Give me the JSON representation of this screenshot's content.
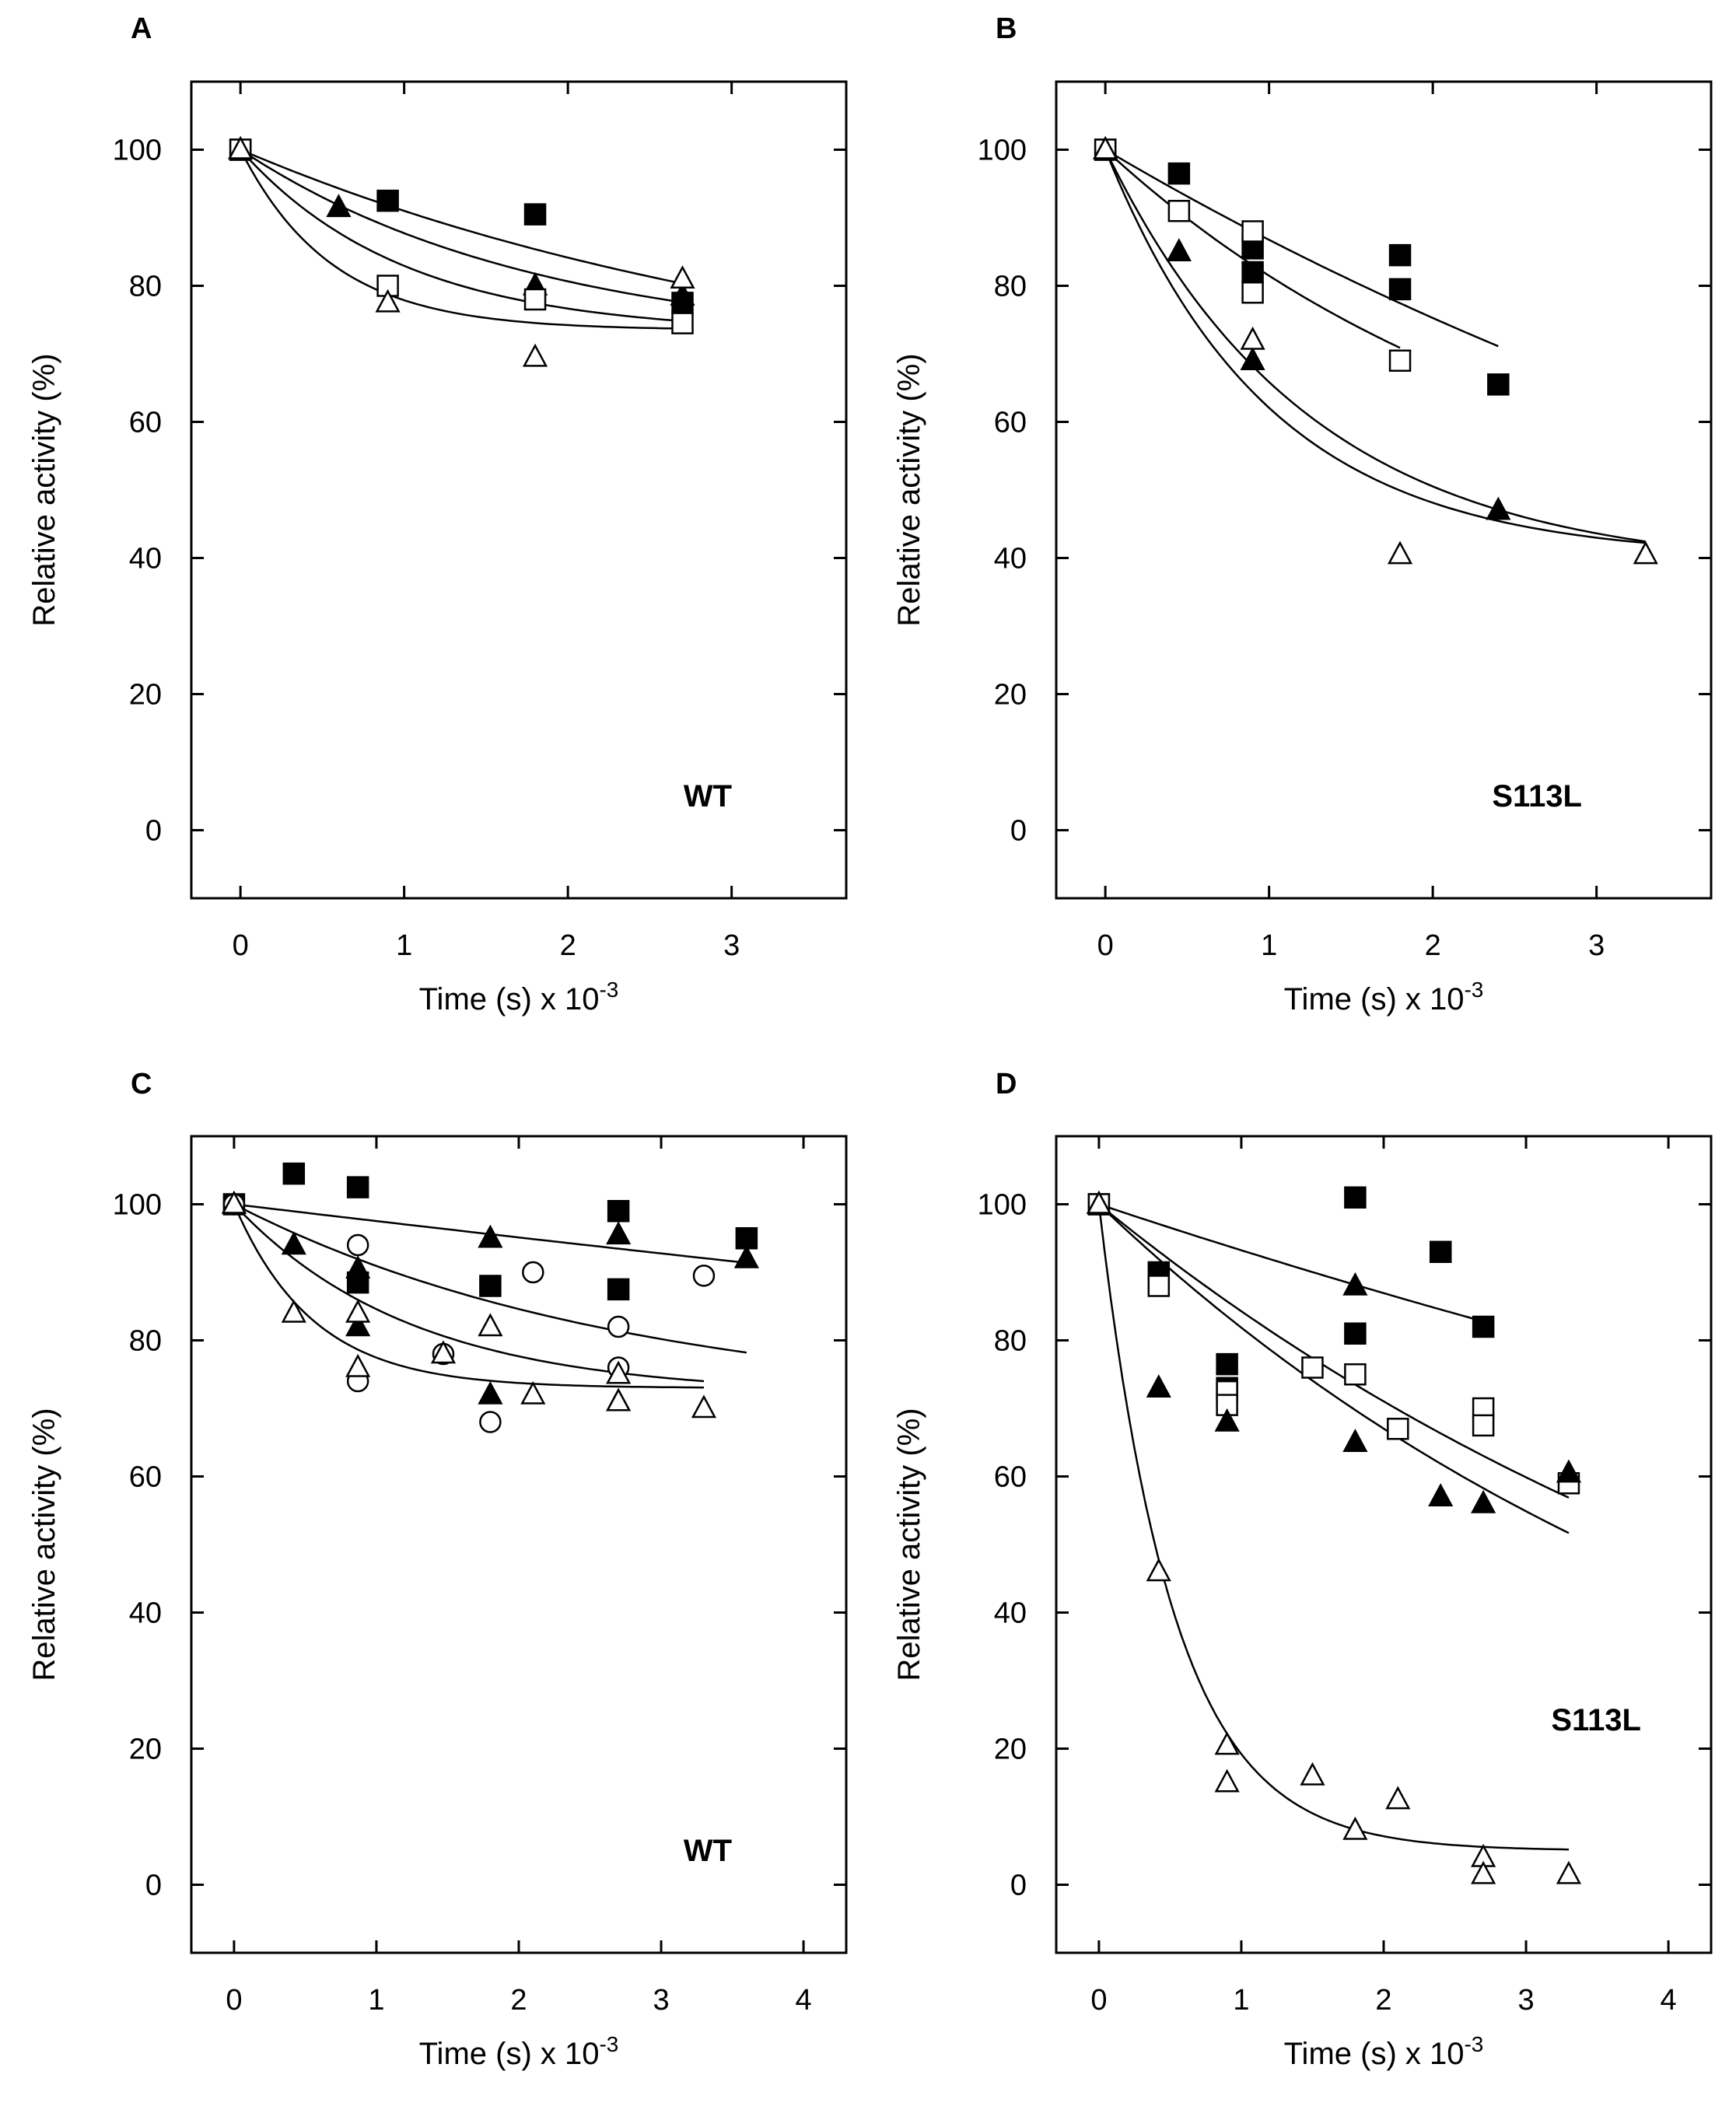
{
  "figure": {
    "panels": [
      "A",
      "B",
      "C",
      "D"
    ]
  },
  "chart_data": [
    {
      "panel": "A",
      "type": "scatter",
      "sample_label": "WT",
      "xlabel_main": "Time (s) x 10",
      "xlabel_exp": "-3",
      "ylabel": "Relative activity (%)",
      "xlim": [
        -0.3,
        3.7
      ],
      "ylim": [
        -10,
        110
      ],
      "xticks": [
        0,
        1,
        2,
        3
      ],
      "yticks": [
        0,
        20,
        40,
        60,
        80,
        100
      ],
      "series": [
        {
          "name": "filled-square",
          "marker": "square",
          "filled": true,
          "points": [
            [
              0,
              100
            ],
            [
              0.9,
              92.5
            ],
            [
              1.8,
              90.5
            ],
            [
              2.7,
              77.5
            ]
          ],
          "fit": {
            "a": 62,
            "k": 0.27,
            "xmax": 2.7
          }
        },
        {
          "name": "filled-triangle",
          "marker": "triangle",
          "filled": true,
          "points": [
            [
              0,
              100
            ],
            [
              0.6,
              91.5
            ],
            [
              1.8,
              80
            ],
            [
              2.7,
              78.5
            ]
          ],
          "fit": {
            "a": 71,
            "k": 0.55,
            "xmax": 2.7
          }
        },
        {
          "name": "open-square",
          "marker": "square",
          "filled": false,
          "points": [
            [
              0,
              100
            ],
            [
              0.9,
              80
            ],
            [
              1.8,
              78
            ],
            [
              2.7,
              74.5
            ]
          ],
          "fit": {
            "a": 73,
            "k": 1.0,
            "xmax": 2.7
          }
        },
        {
          "name": "open-triangle",
          "marker": "triangle",
          "filled": false,
          "points": [
            [
              0,
              100
            ],
            [
              0.9,
              77.5
            ],
            [
              1.8,
              69.5
            ],
            [
              2.7,
              81
            ]
          ],
          "fit": {
            "a": 73.5,
            "k": 1.8,
            "xmax": 2.7
          }
        }
      ]
    },
    {
      "panel": "B",
      "type": "scatter",
      "sample_label": "S113L",
      "xlabel_main": "Time (s) x 10",
      "xlabel_exp": "-3",
      "ylabel": "Relative activity (%)",
      "xlim": [
        -0.3,
        3.7
      ],
      "ylim": [
        -10,
        110
      ],
      "xticks": [
        0,
        1,
        2,
        3
      ],
      "yticks": [
        0,
        20,
        40,
        60,
        80,
        100
      ],
      "series": [
        {
          "name": "filled-square",
          "marker": "square",
          "filled": true,
          "points": [
            [
              0,
              100
            ],
            [
              0.45,
              96.5
            ],
            [
              0.9,
              85.5
            ],
            [
              0.9,
              82
            ],
            [
              1.8,
              84.5
            ],
            [
              1.8,
              79.5
            ],
            [
              2.4,
              65.5
            ]
          ],
          "fit": {
            "a": 0,
            "k": 0.142,
            "xmax": 2.4
          }
        },
        {
          "name": "open-square",
          "marker": "square",
          "filled": false,
          "points": [
            [
              0,
              100
            ],
            [
              0.45,
              91
            ],
            [
              0.9,
              88
            ],
            [
              0.9,
              79
            ],
            [
              1.8,
              69
            ]
          ],
          "fit": {
            "a": 40,
            "k": 0.369,
            "xmax": 1.8
          }
        },
        {
          "name": "filled-triangle",
          "marker": "triangle",
          "filled": true,
          "points": [
            [
              0,
              100
            ],
            [
              0.45,
              85
            ],
            [
              0.9,
              69
            ],
            [
              2.4,
              47
            ]
          ],
          "fit": {
            "a": 38,
            "k": 0.8,
            "xmax": 3.3
          }
        },
        {
          "name": "open-triangle",
          "marker": "triangle",
          "filled": false,
          "points": [
            [
              0,
              100
            ],
            [
              0.9,
              72
            ],
            [
              1.8,
              40.5
            ],
            [
              3.3,
              40.5
            ]
          ],
          "fit": {
            "a": 40,
            "k": 1.0,
            "xmax": 3.3
          }
        }
      ]
    },
    {
      "panel": "C",
      "type": "scatter",
      "sample_label": "WT",
      "xlabel_main": "Time (s) x 10",
      "xlabel_exp": "-3",
      "ylabel": "Relative activity (%)",
      "xlim": [
        -0.3,
        4.3
      ],
      "ylim": [
        -10,
        110
      ],
      "xticks": [
        0,
        1,
        2,
        3,
        4
      ],
      "yticks": [
        0,
        20,
        40,
        60,
        80,
        100
      ],
      "series": [
        {
          "name": "filled-square",
          "marker": "square",
          "filled": true,
          "points": [
            [
              0,
              100
            ],
            [
              0.42,
              104.5
            ],
            [
              0.87,
              102.5
            ],
            [
              0.87,
              88.5
            ],
            [
              1.8,
              88
            ],
            [
              2.7,
              99
            ],
            [
              2.7,
              87.5
            ],
            [
              3.6,
              95
            ]
          ],
          "fit": {
            "a": 0,
            "k": 0.025,
            "xmax": 3.6
          }
        },
        {
          "name": "filled-triangle",
          "marker": "triangle",
          "filled": true,
          "points": [
            [
              0,
              100
            ],
            [
              0.42,
              94
            ],
            [
              0.87,
              90.5
            ],
            [
              0.87,
              82
            ],
            [
              1.8,
              95
            ],
            [
              1.8,
              72
            ],
            [
              2.7,
              95.5
            ],
            [
              2.7,
              71
            ],
            [
              3.6,
              92
            ]
          ],
          "fit": {
            "a": 70,
            "k": 0.36,
            "xmax": 3.6
          }
        },
        {
          "name": "open-circle",
          "marker": "circle",
          "filled": false,
          "points": [
            [
              0,
              100
            ],
            [
              0.87,
              94
            ],
            [
              0.87,
              74
            ],
            [
              1.47,
              78
            ],
            [
              1.8,
              68
            ],
            [
              2.1,
              90
            ],
            [
              2.7,
              82
            ],
            [
              2.7,
              76
            ],
            [
              3.3,
              89.5
            ]
          ],
          "fit": {
            "a": 72,
            "k": 0.8,
            "xmax": 3.3
          }
        },
        {
          "name": "open-triangle",
          "marker": "triangle",
          "filled": false,
          "points": [
            [
              0,
              100
            ],
            [
              0.42,
              84
            ],
            [
              0.87,
              84
            ],
            [
              0.87,
              76
            ],
            [
              1.47,
              78
            ],
            [
              1.8,
              82
            ],
            [
              2.1,
              72
            ],
            [
              2.7,
              75
            ],
            [
              2.7,
              71
            ],
            [
              3.3,
              70
            ]
          ],
          "fit": {
            "a": 73,
            "k": 1.8,
            "xmax": 3.3
          }
        }
      ]
    },
    {
      "panel": "D",
      "type": "scatter",
      "sample_label": "S113L",
      "xlabel_main": "Time (s) x 10",
      "xlabel_exp": "-3",
      "ylabel": "Relative activity (%)",
      "xlim": [
        -0.3,
        4.3
      ],
      "ylim": [
        -10,
        110
      ],
      "xticks": [
        0,
        1,
        2,
        3,
        4
      ],
      "yticks": [
        0,
        20,
        40,
        60,
        80,
        100
      ],
      "series": [
        {
          "name": "filled-square",
          "marker": "square",
          "filled": true,
          "points": [
            [
              0,
              100
            ],
            [
              0.42,
              90
            ],
            [
              0.9,
              76.5
            ],
            [
              0.9,
              73
            ],
            [
              1.8,
              101
            ],
            [
              1.8,
              81
            ],
            [
              2.4,
              93
            ],
            [
              2.7,
              82
            ]
          ],
          "fit": {
            "a": 0,
            "k": 0.07,
            "xmax": 2.7
          }
        },
        {
          "name": "open-square",
          "marker": "square",
          "filled": false,
          "points": [
            [
              0,
              100
            ],
            [
              0.42,
              88
            ],
            [
              0.9,
              72.5
            ],
            [
              0.9,
              70.5
            ],
            [
              1.5,
              76
            ],
            [
              1.8,
              75
            ],
            [
              2.1,
              67
            ],
            [
              2.7,
              70
            ],
            [
              2.7,
              67.5
            ],
            [
              3.3,
              59
            ]
          ],
          "fit": {
            "a": 0,
            "k": 0.171,
            "xmax": 3.3
          }
        },
        {
          "name": "filled-triangle",
          "marker": "triangle",
          "filled": true,
          "points": [
            [
              0,
              100
            ],
            [
              0.42,
              73
            ],
            [
              0.9,
              68
            ],
            [
              1.8,
              88
            ],
            [
              1.8,
              65
            ],
            [
              2.4,
              57
            ],
            [
              2.7,
              56
            ],
            [
              3.3,
              60.5
            ]
          ],
          "fit": {
            "a": 0,
            "k": 0.2,
            "xmax": 3.3
          }
        },
        {
          "name": "open-triangle",
          "marker": "triangle",
          "filled": false,
          "points": [
            [
              0,
              100
            ],
            [
              0.42,
              46
            ],
            [
              0.9,
              20.5
            ],
            [
              0.9,
              15
            ],
            [
              1.5,
              16
            ],
            [
              1.8,
              8
            ],
            [
              2.1,
              12.5
            ],
            [
              2.7,
              4
            ],
            [
              2.7,
              1.5
            ],
            [
              3.3,
              1.5
            ]
          ],
          "fit": {
            "a": 5,
            "k": 1.9,
            "xmax": 3.3
          }
        }
      ]
    }
  ]
}
